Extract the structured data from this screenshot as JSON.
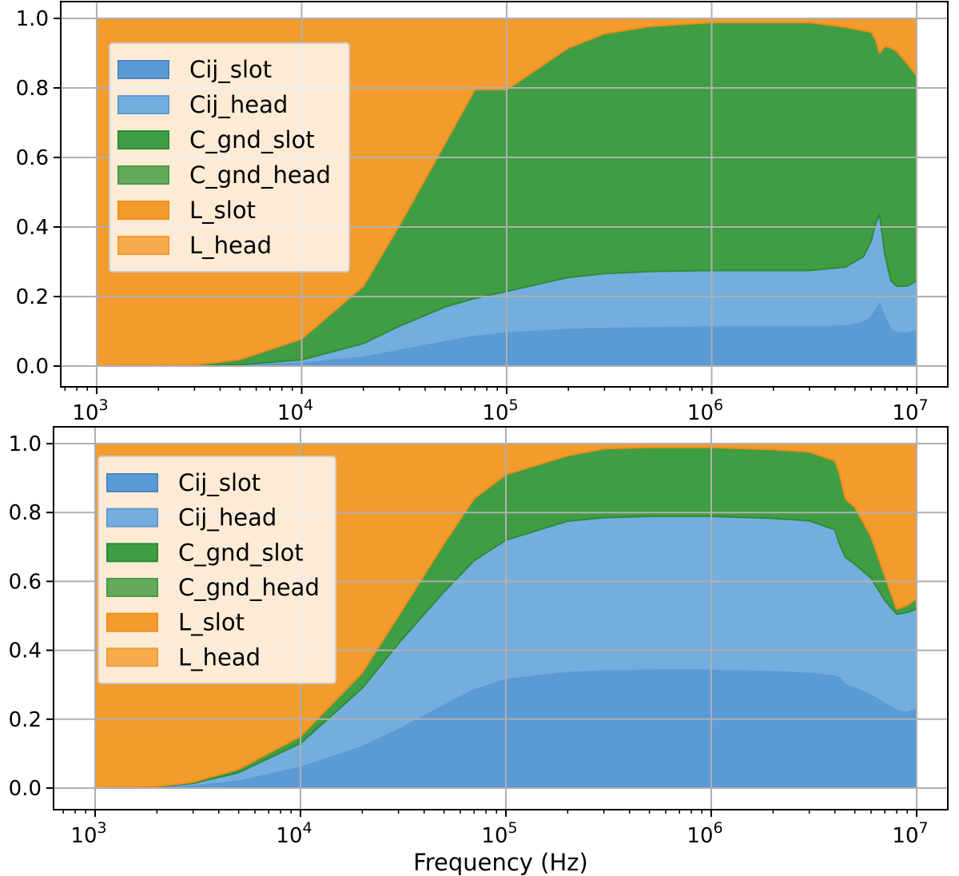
{
  "chart_data": [
    {
      "type": "area",
      "stacked": true,
      "title": "",
      "xlabel": "",
      "ylabel": "",
      "xscale": "log",
      "xlim": [
        1000,
        10000000
      ],
      "ylim": [
        0,
        1
      ],
      "grid": true,
      "legend_position": "upper-left",
      "x_ticks": [
        1000,
        10000,
        100000,
        1000000,
        10000000
      ],
      "x_tick_labels": [
        {
          "base": "10",
          "exp": "3"
        },
        {
          "base": "10",
          "exp": "4"
        },
        {
          "base": "10",
          "exp": "5"
        },
        {
          "base": "10",
          "exp": "6"
        },
        {
          "base": "10",
          "exp": "7"
        }
      ],
      "y_ticks": [
        0,
        0.2,
        0.4,
        0.6,
        0.8,
        1.0
      ],
      "y_tick_labels": [
        "0.0",
        "0.2",
        "0.4",
        "0.6",
        "0.8",
        "1.0"
      ],
      "x": [
        1000,
        3000,
        5000,
        10000,
        20000,
        30000,
        50000,
        70000,
        100000,
        200000,
        300000,
        500000,
        1000000,
        2000000,
        3000000,
        4500000,
        5500000,
        6000000,
        6300000,
        6600000,
        7000000,
        7500000,
        8000000,
        9000000,
        10000000
      ],
      "series": [
        {
          "name": "Cij_slot",
          "color": "#5b9bd5",
          "edge": "#4a86c5",
          "values": [
            0,
            0,
            0.002,
            0.008,
            0.025,
            0.045,
            0.07,
            0.085,
            0.095,
            0.105,
            0.108,
            0.11,
            0.112,
            0.112,
            0.112,
            0.115,
            0.125,
            0.14,
            0.16,
            0.18,
            0.14,
            0.105,
            0.095,
            0.095,
            0.1
          ]
        },
        {
          "name": "Cij_head",
          "color": "#74aedf",
          "edge": "#5d9ad4",
          "values": [
            0,
            0,
            0.002,
            0.01,
            0.04,
            0.07,
            0.1,
            0.11,
            0.12,
            0.15,
            0.158,
            0.162,
            0.163,
            0.163,
            0.163,
            0.17,
            0.19,
            0.22,
            0.25,
            0.255,
            0.18,
            0.14,
            0.135,
            0.135,
            0.145
          ]
        },
        {
          "name": "C_gnd_slot",
          "color": "#3f9e44",
          "edge": "#2e8b35",
          "values": [
            0,
            0.003,
            0.015,
            0.06,
            0.165,
            0.29,
            0.47,
            0.6,
            0.58,
            0.66,
            0.69,
            0.705,
            0.713,
            0.713,
            0.713,
            0.69,
            0.65,
            0.6,
            0.53,
            0.465,
            0.6,
            0.67,
            0.675,
            0.64,
            0.59
          ]
        },
        {
          "name": "C_gnd_head",
          "color": "#62aa5a",
          "edge": "#4c9a46",
          "values": [
            0,
            0,
            0,
            0,
            0,
            0,
            0,
            0,
            0,
            0,
            0,
            0,
            0,
            0,
            0,
            0,
            0,
            0,
            0,
            0,
            0,
            0,
            0,
            0,
            0
          ]
        },
        {
          "name": "L_slot",
          "color": "#f49b2e",
          "edge": "#ef8d1d",
          "values": [
            1,
            0.997,
            0.981,
            0.922,
            0.77,
            0.595,
            0.36,
            0.205,
            0.205,
            0.085,
            0.044,
            0.023,
            0.012,
            0.012,
            0.012,
            0.025,
            0.035,
            0.04,
            0.06,
            0.1,
            0.08,
            0.085,
            0.095,
            0.13,
            0.165
          ]
        },
        {
          "name": "L_head",
          "color": "#f6ab4d",
          "edge": "#f09b32",
          "values": [
            0,
            0,
            0,
            0,
            0,
            0,
            0,
            0,
            0,
            0,
            0,
            0,
            0,
            0,
            0,
            0,
            0,
            0,
            0,
            0,
            0,
            0,
            0,
            0,
            0
          ]
        }
      ]
    },
    {
      "type": "area",
      "stacked": true,
      "title": "",
      "xlabel": "Frequency (Hz)",
      "ylabel": "",
      "xscale": "log",
      "xlim": [
        1000,
        10000000
      ],
      "ylim": [
        0,
        1
      ],
      "grid": true,
      "legend_position": "upper-left",
      "x_ticks": [
        1000,
        10000,
        100000,
        1000000,
        10000000
      ],
      "x_tick_labels": [
        {
          "base": "10",
          "exp": "3"
        },
        {
          "base": "10",
          "exp": "4"
        },
        {
          "base": "10",
          "exp": "5"
        },
        {
          "base": "10",
          "exp": "6"
        },
        {
          "base": "10",
          "exp": "7"
        }
      ],
      "y_ticks": [
        0,
        0.2,
        0.4,
        0.6,
        0.8,
        1.0
      ],
      "y_tick_labels": [
        "0.0",
        "0.2",
        "0.4",
        "0.6",
        "0.8",
        "1.0"
      ],
      "x": [
        1000,
        2000,
        3000,
        5000,
        10000,
        20000,
        30000,
        50000,
        70000,
        100000,
        200000,
        300000,
        500000,
        1000000,
        2000000,
        3000000,
        4000000,
        4200000,
        4500000,
        5000000,
        6000000,
        7000000,
        8000000,
        9000000,
        10000000
      ],
      "series": [
        {
          "name": "Cij_slot",
          "color": "#5b9bd5",
          "edge": "#4a86c5",
          "values": [
            0,
            0.002,
            0.006,
            0.02,
            0.06,
            0.12,
            0.17,
            0.24,
            0.285,
            0.315,
            0.335,
            0.34,
            0.342,
            0.342,
            0.338,
            0.333,
            0.325,
            0.32,
            0.3,
            0.29,
            0.27,
            0.245,
            0.225,
            0.22,
            0.23
          ]
        },
        {
          "name": "Cij_head",
          "color": "#74aedf",
          "edge": "#5d9ad4",
          "values": [
            0,
            0.002,
            0.008,
            0.025,
            0.07,
            0.17,
            0.25,
            0.33,
            0.375,
            0.405,
            0.44,
            0.445,
            0.447,
            0.447,
            0.445,
            0.443,
            0.425,
            0.39,
            0.37,
            0.36,
            0.34,
            0.3,
            0.28,
            0.29,
            0.29
          ]
        },
        {
          "name": "C_gnd_slot",
          "color": "#3f9e44",
          "edge": "#2e8b35",
          "values": [
            0,
            0.001,
            0.003,
            0.01,
            0.02,
            0.045,
            0.08,
            0.14,
            0.18,
            0.19,
            0.19,
            0.2,
            0.2,
            0.2,
            0.2,
            0.2,
            0.2,
            0.205,
            0.17,
            0.165,
            0.12,
            0.07,
            0.015,
            0.02,
            0.03
          ]
        },
        {
          "name": "C_gnd_head",
          "color": "#62aa5a",
          "edge": "#4c9a46",
          "values": [
            0,
            0,
            0,
            0,
            0,
            0,
            0,
            0,
            0,
            0,
            0,
            0,
            0,
            0,
            0,
            0,
            0,
            0,
            0,
            0,
            0,
            0,
            0,
            0,
            0
          ]
        },
        {
          "name": "L_slot",
          "color": "#f49b2e",
          "edge": "#ef8d1d",
          "values": [
            1,
            0.995,
            0.983,
            0.945,
            0.85,
            0.665,
            0.5,
            0.29,
            0.16,
            0.09,
            0.035,
            0.015,
            0.011,
            0.011,
            0.017,
            0.024,
            0.05,
            0.085,
            0.16,
            0.185,
            0.27,
            0.385,
            0.48,
            0.47,
            0.45
          ]
        },
        {
          "name": "L_head",
          "color": "#f6ab4d",
          "edge": "#f09b32",
          "values": [
            0,
            0,
            0,
            0,
            0,
            0,
            0,
            0,
            0,
            0,
            0,
            0,
            0,
            0,
            0,
            0,
            0,
            0,
            0,
            0,
            0,
            0,
            0,
            0,
            0
          ]
        }
      ]
    }
  ]
}
